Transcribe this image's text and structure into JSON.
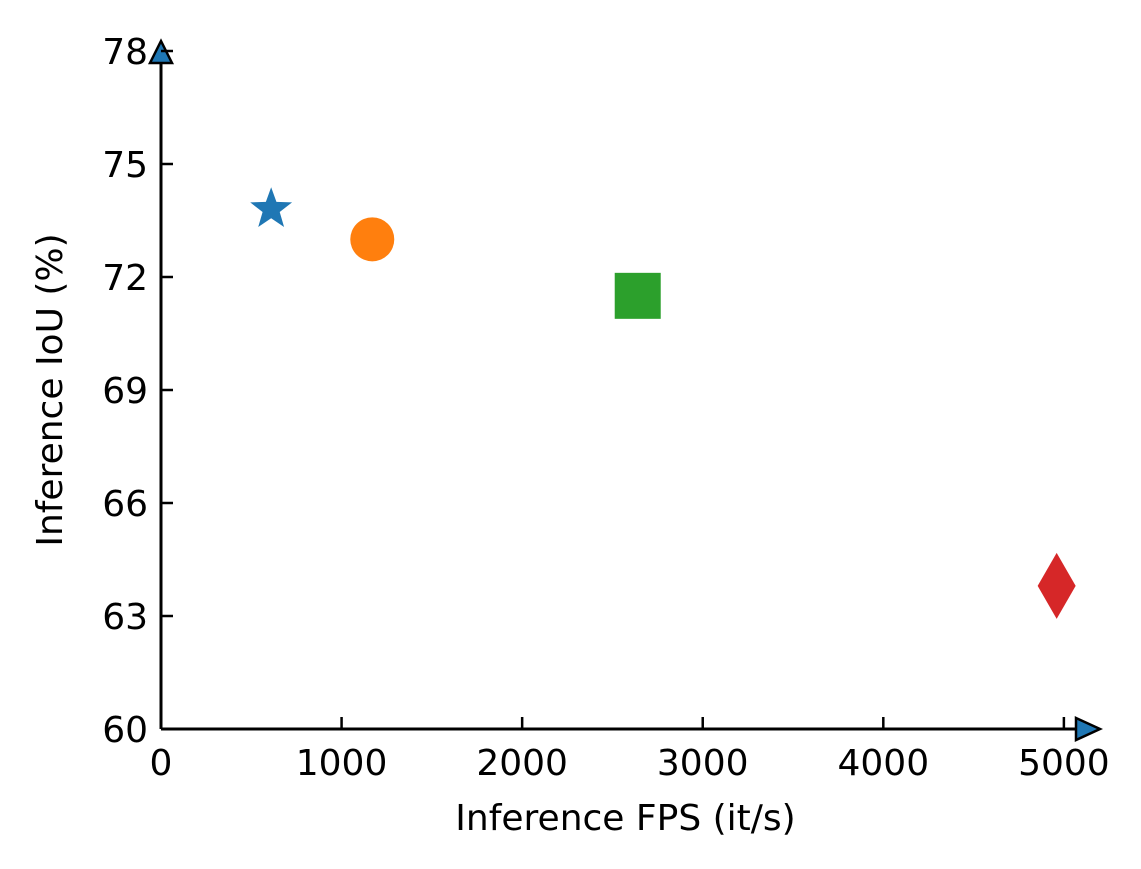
{
  "chart_data": {
    "type": "scatter",
    "xlabel": "Inference FPS (it/s)",
    "ylabel": "Inference IoU (%)",
    "xlim": [
      0,
      5200
    ],
    "ylim": [
      60,
      78
    ],
    "xticks": [
      "0",
      "1000",
      "2000",
      "3000",
      "4000",
      "5000"
    ],
    "yticks": [
      "60",
      "63",
      "66",
      "69",
      "72",
      "75",
      "78"
    ],
    "grid": false,
    "points": [
      {
        "x": 610,
        "y": 73.8,
        "marker": "star",
        "color": "#1f77b4"
      },
      {
        "x": 1170,
        "y": 73.0,
        "marker": "circle",
        "color": "#ff7f0e"
      },
      {
        "x": 2640,
        "y": 71.5,
        "marker": "square",
        "color": "#2ca02c"
      },
      {
        "x": 4960,
        "y": 63.8,
        "marker": "diamond",
        "color": "#d62728"
      }
    ],
    "axis_arrow_color": "#1f77b4"
  }
}
